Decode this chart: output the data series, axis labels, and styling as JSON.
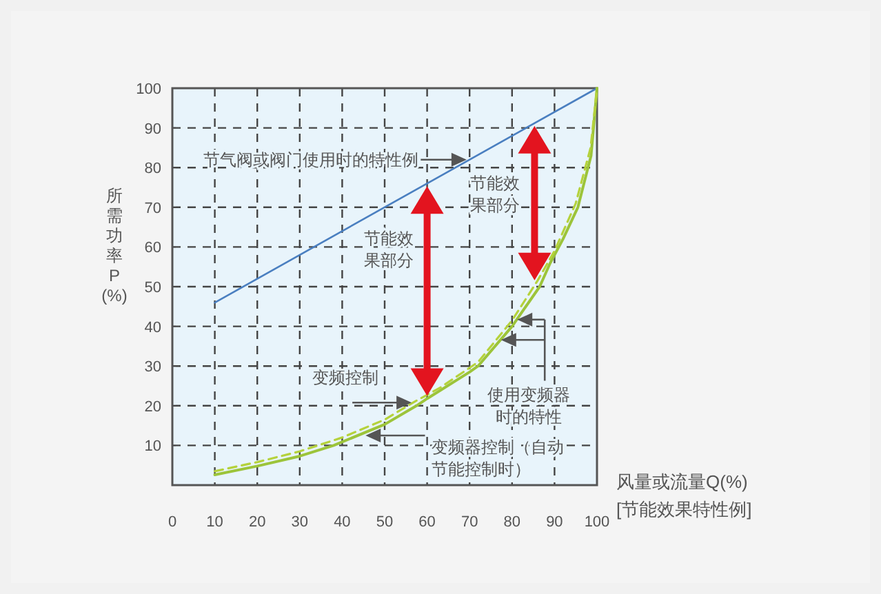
{
  "chart_data": {
    "type": "line",
    "xlabel": "风量或流量Q(%)\n[节能效果特性例]",
    "ylabel": "所需功率P(%)",
    "xlim": [
      0,
      100
    ],
    "ylim": [
      0,
      100
    ],
    "xticks": [
      0,
      10,
      20,
      30,
      40,
      50,
      60,
      70,
      80,
      90,
      100
    ],
    "yticks": [
      10,
      20,
      30,
      40,
      50,
      60,
      70,
      80,
      90,
      100
    ],
    "grid": true,
    "marker": "none",
    "series": [
      {
        "color": "#4a7fc0",
        "line_style": "solid",
        "x": [
          10,
          100
        ],
        "values": [
          46,
          100
        ]
      },
      {
        "color": "#9cc43a",
        "line_style": "solid",
        "x": [
          10,
          20,
          30,
          38,
          50,
          57.5,
          60,
          70,
          72,
          80,
          86.5,
          89,
          92,
          95.5,
          98.6,
          100
        ],
        "values": [
          2.6,
          4.8,
          7.3,
          10,
          15.3,
          20,
          21.8,
          28.5,
          30,
          40,
          50,
          56,
          62,
          70,
          83,
          100
        ]
      },
      {
        "color": "#b5d23c",
        "line_style": "dashed",
        "x": [
          10,
          20,
          30,
          40,
          50,
          57,
          63,
          72,
          80,
          86,
          90,
          95,
          98.5,
          100
        ],
        "values": [
          3.5,
          5.8,
          8.5,
          12,
          16.5,
          21,
          24.5,
          31,
          41.5,
          51.5,
          59,
          71,
          85,
          100
        ]
      }
    ],
    "annotations": [
      "节气阀或阀门使用时的特性例",
      "节能效果部分",
      "节能效果部分",
      {
        "text": "变频控制",
        "x": 57,
        "y": 20.8
      },
      "使用变频器时的特性",
      "变频器控制（自动节能控制时）"
    ]
  }
}
